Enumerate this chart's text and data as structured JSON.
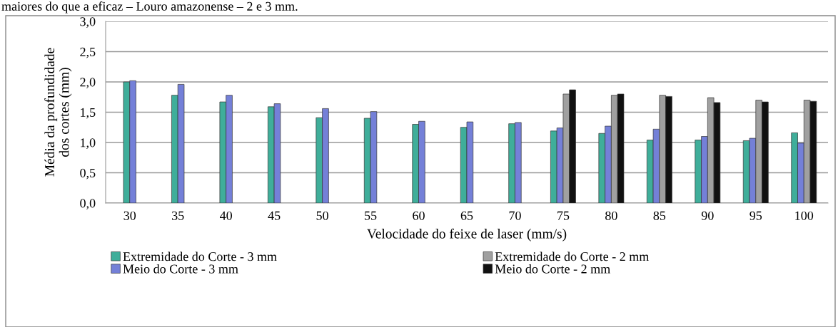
{
  "chart_data": {
    "type": "bar",
    "annotations": [
      "maiores do que a eficaz – Louro amazonense – 2 e 3 mm."
    ],
    "xlabel": "Velocidade do feixe de laser (mm/s)",
    "ylabel": "Média da profundidade\ndos cortes (mm)",
    "categories": [
      "30",
      "35",
      "40",
      "45",
      "50",
      "55",
      "60",
      "65",
      "70",
      "75",
      "80",
      "85",
      "90",
      "95",
      "100"
    ],
    "series": [
      {
        "name": "Extremidade do Corte - 3 mm",
        "color": "#3fae9a",
        "values": [
          2.0,
          1.78,
          1.67,
          1.59,
          1.41,
          1.4,
          1.3,
          1.25,
          1.31,
          1.19,
          1.15,
          1.04,
          1.04,
          1.03,
          1.16
        ]
      },
      {
        "name": "Meio do Corte - 3 mm",
        "color": "#7480d8",
        "values": [
          2.02,
          1.96,
          1.78,
          1.64,
          1.56,
          1.51,
          1.35,
          1.34,
          1.33,
          1.24,
          1.27,
          1.22,
          1.1,
          1.07,
          0.99
        ]
      },
      {
        "name": "Extremidade do Corte - 2 mm",
        "color": "#a0a0a0",
        "values": [
          null,
          null,
          null,
          null,
          null,
          null,
          null,
          null,
          null,
          1.8,
          1.78,
          1.78,
          1.74,
          1.7,
          1.7
        ]
      },
      {
        "name": "Meio do Corte - 2 mm",
        "color": "#111111",
        "values": [
          null,
          null,
          null,
          null,
          null,
          null,
          null,
          null,
          null,
          1.87,
          1.8,
          1.76,
          1.66,
          1.67,
          1.68
        ]
      }
    ],
    "ylim": [
      0,
      3.0
    ],
    "yticks": [
      {
        "value": 0,
        "label": "0,0"
      },
      {
        "value": 0.5,
        "label": "0,5"
      },
      {
        "value": 1.0,
        "label": "1,0"
      },
      {
        "value": 1.5,
        "label": "1,5"
      },
      {
        "value": 2.0,
        "label": "2,0"
      },
      {
        "value": 2.5,
        "label": "2,5"
      },
      {
        "value": 3.0,
        "label": "3,0"
      }
    ],
    "grid": "y",
    "legend": "bottom"
  }
}
